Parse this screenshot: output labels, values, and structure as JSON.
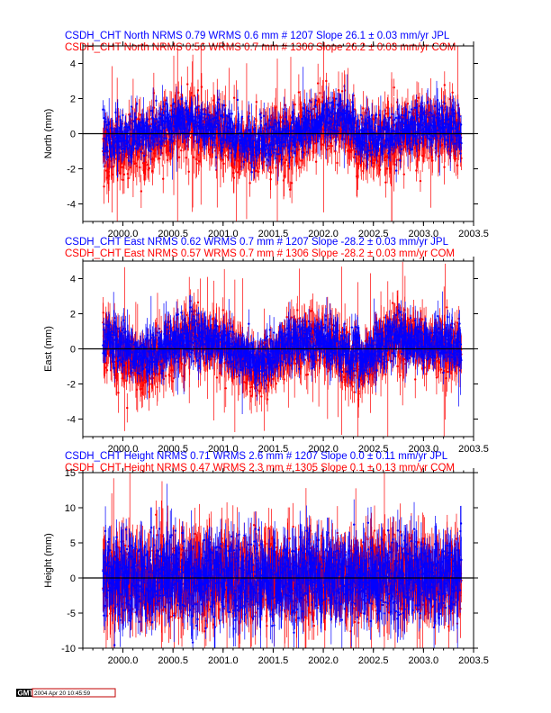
{
  "colors": {
    "jpl": "#0000ff",
    "com": "#ff0000",
    "axis": "#000000"
  },
  "footer": {
    "logo": "GMT",
    "timestamp": "2004 Apr 20 10:45:59"
  },
  "chart_data": [
    {
      "type": "scatter",
      "component": "North",
      "ylabel": "North (mm)",
      "header_lines": [
        "CSDH_CHT North NRMS 0.79 WRMS  0.6 mm # 1207 Slope   26.1 ±  0.03 mm/yr JPL",
        "CSDH_CHT North NRMS 0.56 WRMS  0.7 mm # 1306 Slope   26.2 ±  0.03 mm/yr COM"
      ],
      "xlim": [
        1999.6,
        2003.5
      ],
      "ylim": [
        -5,
        5
      ],
      "xticks": [
        2000.0,
        2000.5,
        2001.0,
        2001.5,
        2002.0,
        2002.5,
        2003.0,
        2003.5
      ],
      "xticklabels": [
        "2000.0",
        "2000.5",
        "2001.0",
        "2001.5",
        "2002.0",
        "2002.5",
        "2003.0",
        "2003.5"
      ],
      "yticks": [
        -4,
        -2,
        0,
        2,
        4
      ],
      "yticklabels": [
        "-4",
        "-2",
        "0",
        "2",
        "4"
      ],
      "x_range": [
        1999.8,
        2003.38
      ],
      "series": [
        {
          "name": "COM",
          "color": "#ff0000",
          "n": 1306,
          "nrms": 0.56,
          "wrms_mm": 0.7,
          "slope_mm_yr": 26.2,
          "slope_sigma": 0.03,
          "trend": [
            [
              1999.8,
              -1.0
            ],
            [
              2000.2,
              -0.8
            ],
            [
              2000.6,
              0.6
            ],
            [
              2000.9,
              0.0
            ],
            [
              2001.3,
              -0.9
            ],
            [
              2001.7,
              -0.3
            ],
            [
              2002.0,
              0.6
            ],
            [
              2002.2,
              0.9
            ],
            [
              2002.35,
              -0.6
            ],
            [
              2002.6,
              -0.6
            ],
            [
              2002.9,
              0.2
            ],
            [
              2003.2,
              0.3
            ],
            [
              2003.38,
              -0.3
            ]
          ],
          "spread": 0.9,
          "err_typ": 0.9,
          "err_max": 5.5
        },
        {
          "name": "JPL",
          "color": "#0000ff",
          "n": 1207,
          "nrms": 0.79,
          "wrms_mm": 0.6,
          "slope_mm_yr": 26.1,
          "slope_sigma": 0.03,
          "trend": [
            [
              1999.8,
              -0.3
            ],
            [
              2000.2,
              0.0
            ],
            [
              2000.6,
              0.9
            ],
            [
              2000.9,
              0.3
            ],
            [
              2001.3,
              -0.5
            ],
            [
              2001.7,
              0.0
            ],
            [
              2002.0,
              0.8
            ],
            [
              2002.2,
              1.0
            ],
            [
              2002.35,
              -0.1
            ],
            [
              2002.6,
              -0.2
            ],
            [
              2002.9,
              0.4
            ],
            [
              2003.2,
              0.5
            ],
            [
              2003.38,
              0.0
            ]
          ],
          "spread": 0.6,
          "err_typ": 0.6,
          "err_max": 2.5
        }
      ]
    },
    {
      "type": "scatter",
      "component": "East",
      "ylabel": "East (mm)",
      "header_lines": [
        "CSDH_CHT East NRMS 0.62 WRMS  0.7 mm # 1207 Slope  -28.2 ±  0.03 mm/yr JPL",
        "CSDH_CHT East NRMS 0.57 WRMS  0.7 mm # 1306 Slope  -28.2 ±  0.03 mm/yr COM"
      ],
      "xlim": [
        1999.6,
        2003.5
      ],
      "ylim": [
        -5,
        5
      ],
      "xticks": [
        2000.0,
        2000.5,
        2001.0,
        2001.5,
        2002.0,
        2002.5,
        2003.0,
        2003.5
      ],
      "xticklabels": [
        "2000.0",
        "2000.5",
        "2001.0",
        "2001.5",
        "2002.0",
        "2002.5",
        "2003.0",
        "2003.5"
      ],
      "yticks": [
        -4,
        -2,
        0,
        2,
        4
      ],
      "yticklabels": [
        "-4",
        "-2",
        "0",
        "2",
        "4"
      ],
      "x_range": [
        1999.8,
        2003.38
      ],
      "series": [
        {
          "name": "COM",
          "color": "#ff0000",
          "n": 1306,
          "nrms": 0.57,
          "wrms_mm": 0.7,
          "slope_mm_yr": -28.2,
          "slope_sigma": 0.03,
          "trend": [
            [
              1999.8,
              0.2
            ],
            [
              2000.2,
              -1.0
            ],
            [
              2000.7,
              0.8
            ],
            [
              2001.0,
              0.0
            ],
            [
              2001.4,
              -1.2
            ],
            [
              2001.7,
              0.4
            ],
            [
              2002.0,
              0.3
            ],
            [
              2002.4,
              -1.1
            ],
            [
              2002.7,
              0.9
            ],
            [
              2003.0,
              0.2
            ],
            [
              2003.38,
              0.0
            ]
          ],
          "spread": 0.8,
          "err_typ": 0.9,
          "err_max": 5.0
        },
        {
          "name": "JPL",
          "color": "#0000ff",
          "n": 1207,
          "nrms": 0.62,
          "wrms_mm": 0.7,
          "slope_mm_yr": -28.2,
          "slope_sigma": 0.03,
          "trend": [
            [
              1999.8,
              0.5
            ],
            [
              2000.2,
              -0.5
            ],
            [
              2000.7,
              0.8
            ],
            [
              2001.0,
              0.2
            ],
            [
              2001.4,
              -0.8
            ],
            [
              2001.7,
              0.5
            ],
            [
              2002.0,
              0.4
            ],
            [
              2002.4,
              -0.6
            ],
            [
              2002.7,
              0.8
            ],
            [
              2003.0,
              0.3
            ],
            [
              2003.38,
              0.2
            ]
          ],
          "spread": 0.6,
          "err_typ": 0.7,
          "err_max": 2.5
        }
      ]
    },
    {
      "type": "scatter",
      "component": "Height",
      "ylabel": "Height (mm)",
      "header_lines": [
        "CSDH_CHT Height NRMS 0.71 WRMS  2.6 mm # 1207 Slope    0.0 ±  0.11 mm/yr JPL",
        "CSDH_CHT Height NRMS 0.47 WRMS  2.3 mm # 1305 Slope    0.1 ±  0.13 mm/yr COM"
      ],
      "xlim": [
        1999.6,
        2003.5
      ],
      "ylim": [
        -10,
        15
      ],
      "xticks": [
        2000.0,
        2000.5,
        2001.0,
        2001.5,
        2002.0,
        2002.5,
        2003.0,
        2003.5
      ],
      "xticklabels": [
        "2000.0",
        "2000.5",
        "2001.0",
        "2001.5",
        "2002.0",
        "2002.5",
        "2003.0",
        "2003.5"
      ],
      "yticks": [
        -10,
        -5,
        0,
        5,
        10,
        15
      ],
      "yticklabels": [
        "-10",
        "-5",
        "0",
        "5",
        "10",
        "15"
      ],
      "x_range": [
        1999.8,
        2003.38
      ],
      "series": [
        {
          "name": "COM",
          "color": "#ff0000",
          "n": 1305,
          "nrms": 0.47,
          "wrms_mm": 2.3,
          "slope_mm_yr": 0.1,
          "slope_sigma": 0.13,
          "trend": [
            [
              1999.8,
              0.0
            ],
            [
              2003.38,
              0.0
            ]
          ],
          "spread": 2.6,
          "err_typ": 3.5,
          "err_max": 14.0
        },
        {
          "name": "JPL",
          "color": "#0000ff",
          "n": 1207,
          "nrms": 0.71,
          "wrms_mm": 2.6,
          "slope_mm_yr": 0.0,
          "slope_sigma": 0.11,
          "trend": [
            [
              1999.8,
              0.0
            ],
            [
              2003.38,
              0.0
            ]
          ],
          "spread": 2.8,
          "err_typ": 3.0,
          "err_max": 10.0
        }
      ]
    }
  ]
}
